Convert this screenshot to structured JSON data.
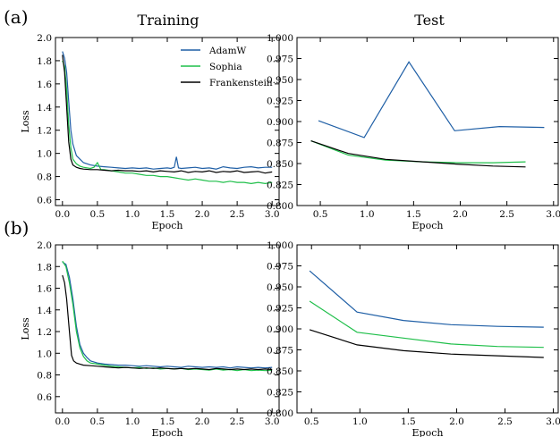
{
  "panel_labels": [
    "(a)",
    "(b)"
  ],
  "column_titles": [
    "Training",
    "Test"
  ],
  "chart_data": [
    {
      "id": "a-train",
      "type": "line",
      "xlabel": "Epoch",
      "ylabel": "Loss",
      "xlim": [
        -0.1,
        3.1
      ],
      "ylim": [
        0.55,
        2.0
      ],
      "xticks": [
        0.0,
        0.5,
        1.0,
        1.5,
        2.0,
        2.5,
        3.0
      ],
      "yticks": [
        0.6,
        0.8,
        1.0,
        1.2,
        1.4,
        1.6,
        1.8,
        2.0
      ],
      "tick_decimals": 1,
      "legend": "top-right",
      "grid": false,
      "series": [
        {
          "name": "AdamW",
          "color": "#1f5fa6",
          "x": [
            0.0,
            0.03,
            0.06,
            0.09,
            0.12,
            0.15,
            0.2,
            0.25,
            0.3,
            0.4,
            0.5,
            0.6,
            0.7,
            0.8,
            0.9,
            1.0,
            1.1,
            1.2,
            1.3,
            1.4,
            1.5,
            1.55,
            1.6,
            1.63,
            1.66,
            1.7,
            1.8,
            1.9,
            2.0,
            2.1,
            2.2,
            2.3,
            2.4,
            2.5,
            2.6,
            2.7,
            2.8,
            2.9,
            3.0
          ],
          "y": [
            1.88,
            1.82,
            1.7,
            1.45,
            1.2,
            1.08,
            0.98,
            0.95,
            0.92,
            0.9,
            0.89,
            0.885,
            0.88,
            0.875,
            0.87,
            0.875,
            0.87,
            0.875,
            0.865,
            0.87,
            0.875,
            0.87,
            0.88,
            0.97,
            0.875,
            0.87,
            0.875,
            0.88,
            0.87,
            0.875,
            0.865,
            0.885,
            0.875,
            0.87,
            0.88,
            0.885,
            0.875,
            0.88,
            0.88
          ]
        },
        {
          "name": "Sophia",
          "color": "#1fbf4a",
          "x": [
            0.0,
            0.03,
            0.06,
            0.09,
            0.12,
            0.15,
            0.2,
            0.25,
            0.3,
            0.4,
            0.45,
            0.5,
            0.55,
            0.6,
            0.7,
            0.8,
            0.9,
            1.0,
            1.1,
            1.2,
            1.3,
            1.4,
            1.5,
            1.6,
            1.7,
            1.8,
            1.9,
            2.0,
            2.1,
            2.2,
            2.3,
            2.4,
            2.5,
            2.6,
            2.7,
            2.8,
            2.9,
            3.0
          ],
          "y": [
            1.8,
            1.75,
            1.55,
            1.25,
            1.05,
            0.95,
            0.91,
            0.89,
            0.88,
            0.87,
            0.88,
            0.92,
            0.86,
            0.86,
            0.85,
            0.84,
            0.83,
            0.83,
            0.82,
            0.81,
            0.81,
            0.8,
            0.8,
            0.79,
            0.78,
            0.77,
            0.78,
            0.77,
            0.76,
            0.76,
            0.75,
            0.76,
            0.75,
            0.75,
            0.74,
            0.75,
            0.74,
            0.75
          ]
        },
        {
          "name": "Frankenstein",
          "color": "#000000",
          "x": [
            0.0,
            0.03,
            0.06,
            0.09,
            0.12,
            0.15,
            0.2,
            0.25,
            0.3,
            0.4,
            0.5,
            0.6,
            0.7,
            0.8,
            0.9,
            1.0,
            1.1,
            1.2,
            1.3,
            1.4,
            1.5,
            1.6,
            1.7,
            1.8,
            1.9,
            2.0,
            2.1,
            2.2,
            2.3,
            2.4,
            2.5,
            2.6,
            2.7,
            2.8,
            2.9,
            3.0
          ],
          "y": [
            1.85,
            1.7,
            1.4,
            1.1,
            0.95,
            0.9,
            0.88,
            0.87,
            0.865,
            0.86,
            0.86,
            0.855,
            0.85,
            0.855,
            0.85,
            0.85,
            0.845,
            0.85,
            0.84,
            0.85,
            0.845,
            0.84,
            0.85,
            0.835,
            0.845,
            0.84,
            0.85,
            0.835,
            0.845,
            0.84,
            0.85,
            0.835,
            0.84,
            0.845,
            0.83,
            0.84
          ]
        }
      ]
    },
    {
      "id": "a-test",
      "type": "line",
      "xlabel": "Epoch",
      "ylabel": "",
      "xlim": [
        0.25,
        3.05
      ],
      "ylim": [
        0.8,
        1.0
      ],
      "xticks": [
        0.5,
        1.0,
        1.5,
        2.0,
        2.5,
        3.0
      ],
      "yticks": [
        0.8,
        0.825,
        0.85,
        0.875,
        0.9,
        0.925,
        0.95,
        0.975,
        1.0
      ],
      "tick_decimals": 3,
      "grid": false,
      "series": [
        {
          "name": "AdamW",
          "color": "#1f5fa6",
          "x": [
            0.48,
            0.97,
            1.45,
            1.94,
            2.42,
            2.9
          ],
          "y": [
            0.901,
            0.881,
            0.971,
            0.889,
            0.894,
            0.893
          ]
        },
        {
          "name": "Sophia",
          "color": "#1fbf4a",
          "x": [
            0.4,
            0.8,
            1.2,
            1.6,
            2.0,
            2.35,
            2.7
          ],
          "y": [
            0.877,
            0.86,
            0.854,
            0.852,
            0.851,
            0.851,
            0.852
          ]
        },
        {
          "name": "Frankenstein",
          "color": "#000000",
          "x": [
            0.4,
            0.8,
            1.2,
            1.6,
            2.0,
            2.35,
            2.7
          ],
          "y": [
            0.877,
            0.862,
            0.855,
            0.852,
            0.849,
            0.847,
            0.846
          ]
        }
      ]
    },
    {
      "id": "b-train",
      "type": "line",
      "xlabel": "Epoch",
      "ylabel": "Loss",
      "xlim": [
        -0.1,
        3.1
      ],
      "ylim": [
        0.45,
        2.0
      ],
      "xticks": [
        0.0,
        0.5,
        1.0,
        1.5,
        2.0,
        2.5,
        3.0
      ],
      "yticks": [
        0.6,
        0.8,
        1.0,
        1.2,
        1.4,
        1.6,
        1.8,
        2.0
      ],
      "tick_decimals": 1,
      "grid": false,
      "series": [
        {
          "name": "AdamW",
          "color": "#1f5fa6",
          "x": [
            0.0,
            0.05,
            0.1,
            0.15,
            0.2,
            0.25,
            0.3,
            0.35,
            0.4,
            0.5,
            0.6,
            0.7,
            0.8,
            0.9,
            1.0,
            1.1,
            1.2,
            1.3,
            1.4,
            1.5,
            1.6,
            1.7,
            1.8,
            1.9,
            2.0,
            2.1,
            2.2,
            2.3,
            2.4,
            2.5,
            2.6,
            2.7,
            2.8,
            2.9,
            3.0
          ],
          "y": [
            1.84,
            1.82,
            1.7,
            1.5,
            1.25,
            1.08,
            1.0,
            0.96,
            0.93,
            0.91,
            0.9,
            0.895,
            0.89,
            0.89,
            0.885,
            0.88,
            0.885,
            0.88,
            0.875,
            0.88,
            0.875,
            0.87,
            0.88,
            0.875,
            0.87,
            0.875,
            0.87,
            0.875,
            0.865,
            0.875,
            0.87,
            0.865,
            0.87,
            0.865,
            0.87
          ]
        },
        {
          "name": "Sophia",
          "color": "#1fbf4a",
          "x": [
            0.0,
            0.05,
            0.1,
            0.15,
            0.2,
            0.25,
            0.3,
            0.35,
            0.4,
            0.5,
            0.6,
            0.7,
            0.8,
            0.9,
            1.0,
            1.1,
            1.2,
            1.3,
            1.4,
            1.5,
            1.6,
            1.7,
            1.8,
            1.9,
            2.0,
            2.1,
            2.2,
            2.3,
            2.4,
            2.5,
            2.6,
            2.7,
            2.8,
            2.9,
            3.0
          ],
          "y": [
            1.85,
            1.8,
            1.65,
            1.45,
            1.2,
            1.05,
            0.97,
            0.93,
            0.91,
            0.9,
            0.89,
            0.88,
            0.875,
            0.87,
            0.865,
            0.87,
            0.86,
            0.865,
            0.855,
            0.86,
            0.855,
            0.86,
            0.85,
            0.855,
            0.85,
            0.845,
            0.855,
            0.845,
            0.85,
            0.84,
            0.85,
            0.84,
            0.845,
            0.84,
            0.845
          ]
        },
        {
          "name": "Frankenstein",
          "color": "#000000",
          "x": [
            0.0,
            0.03,
            0.06,
            0.1,
            0.13,
            0.16,
            0.2,
            0.25,
            0.3,
            0.4,
            0.5,
            0.6,
            0.7,
            0.8,
            0.9,
            1.0,
            1.1,
            1.2,
            1.3,
            1.4,
            1.5,
            1.6,
            1.7,
            1.8,
            1.9,
            2.0,
            2.1,
            2.2,
            2.3,
            2.4,
            2.5,
            2.6,
            2.7,
            2.8,
            2.9,
            3.0
          ],
          "y": [
            1.72,
            1.65,
            1.5,
            1.2,
            0.98,
            0.93,
            0.91,
            0.9,
            0.89,
            0.885,
            0.88,
            0.875,
            0.87,
            0.865,
            0.87,
            0.865,
            0.86,
            0.865,
            0.86,
            0.865,
            0.86,
            0.855,
            0.86,
            0.855,
            0.86,
            0.855,
            0.85,
            0.86,
            0.855,
            0.85,
            0.855,
            0.85,
            0.855,
            0.85,
            0.855,
            0.85
          ]
        }
      ]
    },
    {
      "id": "b-test",
      "type": "line",
      "xlabel": "Epoch",
      "ylabel": "",
      "xlim": [
        0.35,
        3.05
      ],
      "ylim": [
        0.8,
        1.0
      ],
      "xticks": [
        0.5,
        1.0,
        1.5,
        2.0,
        2.5,
        3.0
      ],
      "yticks": [
        0.8,
        0.825,
        0.85,
        0.875,
        0.9,
        0.925,
        0.95,
        0.975,
        1.0
      ],
      "tick_decimals": 3,
      "grid": false,
      "series": [
        {
          "name": "AdamW",
          "color": "#1f5fa6",
          "x": [
            0.48,
            0.97,
            1.45,
            1.94,
            2.42,
            2.9
          ],
          "y": [
            0.969,
            0.92,
            0.91,
            0.905,
            0.903,
            0.902
          ]
        },
        {
          "name": "Sophia",
          "color": "#1fbf4a",
          "x": [
            0.48,
            0.97,
            1.45,
            1.94,
            2.42,
            2.9
          ],
          "y": [
            0.933,
            0.896,
            0.889,
            0.882,
            0.879,
            0.878
          ]
        },
        {
          "name": "Frankenstein",
          "color": "#000000",
          "x": [
            0.48,
            0.97,
            1.45,
            1.94,
            2.42,
            2.9
          ],
          "y": [
            0.899,
            0.881,
            0.874,
            0.87,
            0.868,
            0.866
          ]
        }
      ]
    }
  ]
}
